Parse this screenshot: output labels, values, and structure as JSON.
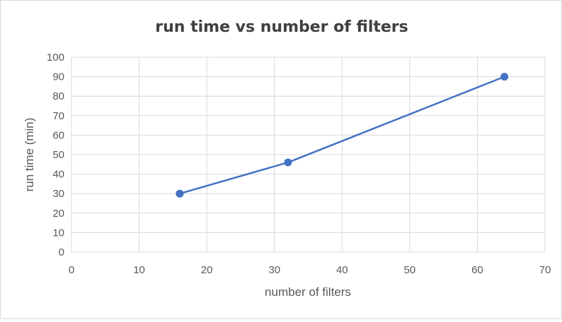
{
  "chart_data": {
    "type": "scatter",
    "title": "run time vs number of filters",
    "xlabel": "number of filters",
    "ylabel": "run time (min)",
    "xlim": [
      0,
      70
    ],
    "ylim": [
      0,
      100
    ],
    "xticks": [
      0,
      10,
      20,
      30,
      40,
      50,
      60,
      70
    ],
    "yticks": [
      0,
      10,
      20,
      30,
      40,
      50,
      60,
      70,
      80,
      90,
      100
    ],
    "grid": true,
    "legend": "none",
    "series": [
      {
        "color": "#4472c4",
        "style": "line-with-markers",
        "points": [
          {
            "x": 16,
            "y": 30
          },
          {
            "x": 32,
            "y": 46
          },
          {
            "x": 64,
            "y": 90
          }
        ]
      }
    ]
  }
}
